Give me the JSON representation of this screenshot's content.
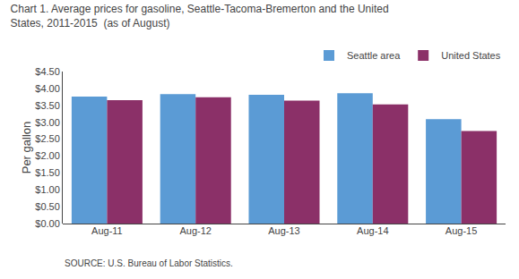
{
  "chart_data": {
    "type": "bar",
    "title": "Chart 1. Average prices for gasoline, Seattle-Tacoma-Bremerton and the United\nStates, 2011-2015  (as of August)",
    "ylabel": "Per gallon",
    "annotations": [
      "SOURCE: U.S. Bureau of Labor Statistics."
    ],
    "categories": [
      "Aug-11",
      "Aug-12",
      "Aug-13",
      "Aug-14",
      "Aug-15"
    ],
    "series": [
      {
        "name": "Seattle area",
        "color": "#5B9BD5",
        "values": [
          3.76,
          3.83,
          3.81,
          3.86,
          3.09
        ]
      },
      {
        "name": "United States",
        "color": "#8B3068",
        "values": [
          3.65,
          3.74,
          3.64,
          3.53,
          2.74
        ]
      }
    ],
    "ylim": [
      0,
      4.5
    ],
    "yticks": [
      {
        "value": 0.0,
        "label": "$0.00"
      },
      {
        "value": 0.5,
        "label": "$0.50"
      },
      {
        "value": 1.0,
        "label": "$1.00"
      },
      {
        "value": 1.5,
        "label": "$1.50"
      },
      {
        "value": 2.0,
        "label": "$2.00"
      },
      {
        "value": 2.5,
        "label": "$2.50"
      },
      {
        "value": 3.0,
        "label": "$3.00"
      },
      {
        "value": 3.5,
        "label": "$3.50"
      },
      {
        "value": 4.0,
        "label": "$4.00"
      },
      {
        "value": 4.5,
        "label": "$4.50"
      }
    ],
    "grid": false,
    "legend": "top right"
  }
}
